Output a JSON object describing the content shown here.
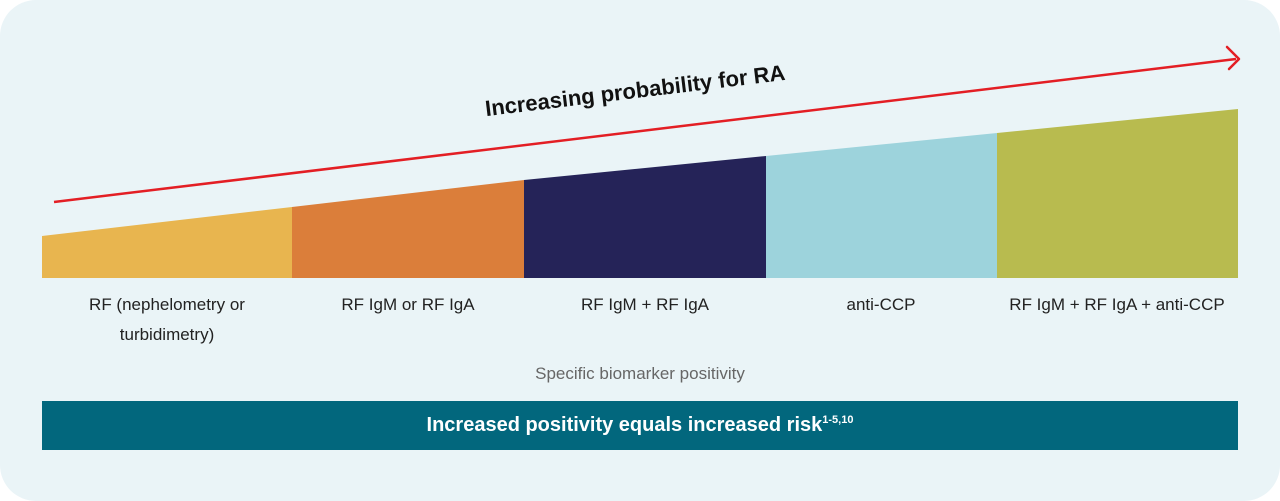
{
  "arrow": {
    "title": "Increasing probability for RA",
    "color": "#e31e24"
  },
  "segments": [
    {
      "label": "RF (nephelometry or turbidimetry)",
      "color": "#e8b54f"
    },
    {
      "label": "RF IgM or RF IgA",
      "color": "#db7e3a"
    },
    {
      "label": "RF IgM + RF IgA",
      "color": "#252358"
    },
    {
      "label": "anti-CCP",
      "color": "#9dd3dc"
    },
    {
      "label": "RF IgM + RF IgA + anti-CCP",
      "color": "#b8bb4f"
    }
  ],
  "axis_caption": "Specific biomarker positivity",
  "banner": {
    "text": "Increased positivity equals increased risk",
    "superscript": "1-5,10",
    "color": "#02677d"
  }
}
